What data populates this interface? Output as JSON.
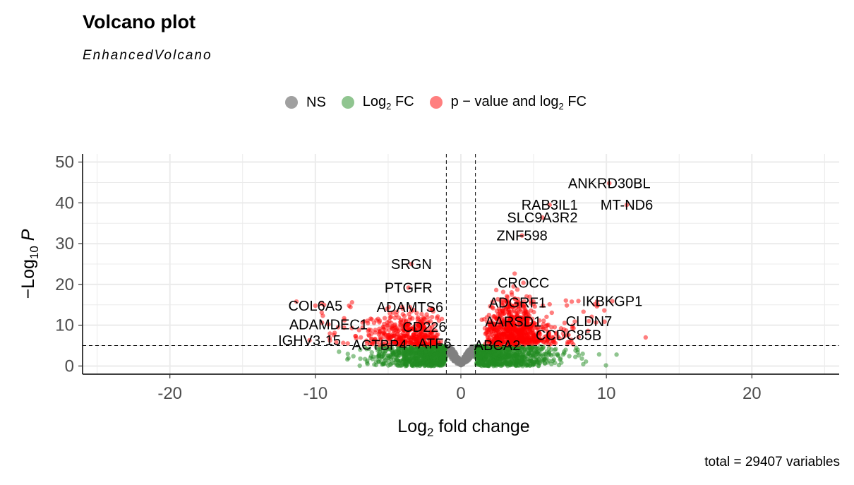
{
  "chart_data": {
    "type": "scatter",
    "title": "Volcano plot",
    "subtitle": "EnhancedVolcano",
    "xlabel": "Log2 fold change",
    "ylabel": "-Log10 P",
    "xlim": [
      -26,
      26
    ],
    "ylim": [
      -2,
      52
    ],
    "x_ticks": [
      -20,
      -10,
      0,
      10,
      20
    ],
    "y_ticks": [
      0,
      10,
      20,
      30,
      40,
      50
    ],
    "fc_cutoff": 1,
    "p_cutoff_log10": 5,
    "grid": true,
    "legend_position": "top",
    "legend": [
      {
        "key": "ns",
        "label": "NS",
        "color": "#808080"
      },
      {
        "key": "fc",
        "label": "Log2 FC",
        "color": "#228B22"
      },
      {
        "key": "both",
        "label": "p − value and log2 FC",
        "color": "#FF0000"
      }
    ],
    "caption": "total = 29407 variables",
    "labeled_points": [
      {
        "label": "ANKRD30BL",
        "x": 10.2,
        "y": 44.8
      },
      {
        "label": "MT-ND6",
        "x": 11.4,
        "y": 39.5
      },
      {
        "label": "RAB3IL1",
        "x": 6.1,
        "y": 39.5
      },
      {
        "label": "SLC9A3R2",
        "x": 5.6,
        "y": 36.4
      },
      {
        "label": "ZNF598",
        "x": 4.2,
        "y": 32.0
      },
      {
        "label": "SRGN",
        "x": -3.4,
        "y": 25.0
      },
      {
        "label": "PTGFR",
        "x": -3.6,
        "y": 19.2
      },
      {
        "label": "CROCC",
        "x": 4.3,
        "y": 20.4
      },
      {
        "label": "IKBKGP1",
        "x": 10.4,
        "y": 15.9
      },
      {
        "label": "ADGRF1",
        "x": 3.9,
        "y": 15.6
      },
      {
        "label": "COL6A5",
        "x": -10.0,
        "y": 14.8
      },
      {
        "label": "ADAMTS6",
        "x": -3.5,
        "y": 14.4
      },
      {
        "label": "CLDN7",
        "x": 8.8,
        "y": 11.0
      },
      {
        "label": "AARSD1",
        "x": 3.6,
        "y": 10.9
      },
      {
        "label": "ADAMDEC1",
        "x": -9.1,
        "y": 10.2
      },
      {
        "label": "CD226",
        "x": -2.5,
        "y": 9.6
      },
      {
        "label": "CCDC85B",
        "x": 7.4,
        "y": 7.6
      },
      {
        "label": "IGHV3-15",
        "x": -10.4,
        "y": 6.3
      },
      {
        "label": "ATF6",
        "x": -1.8,
        "y": 5.5
      },
      {
        "label": "ABCA2",
        "x": 2.5,
        "y": 5.1
      },
      {
        "label": "ACTBP4",
        "x": -5.6,
        "y": 5.2
      }
    ]
  }
}
